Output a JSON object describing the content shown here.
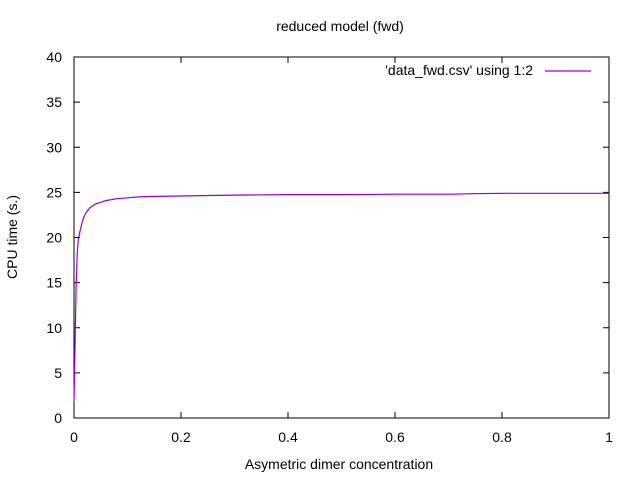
{
  "chart_data": {
    "type": "line",
    "title": "reduced model (fwd)",
    "xlabel": "Asymetric dimer concentration",
    "ylabel": "CPU time (s.)",
    "xlim": [
      0,
      1
    ],
    "ylim": [
      0,
      40
    ],
    "xticks": [
      0,
      0.2,
      0.4,
      0.6,
      0.8,
      1
    ],
    "xtick_labels": [
      "0",
      "0.2",
      "0.4",
      "0.6",
      "0.8",
      "1"
    ],
    "yticks": [
      0,
      5,
      10,
      15,
      20,
      25,
      30,
      35,
      40
    ],
    "ytick_labels": [
      "0",
      "5",
      "10",
      "15",
      "20",
      "25",
      "30",
      "35",
      "40"
    ],
    "grid": false,
    "legend_position": "top-right",
    "series": [
      {
        "name": "'data_fwd.csv' using 1:2",
        "color": "#9400d3",
        "x": [
          0.0,
          0.002,
          0.004,
          0.006,
          0.008,
          0.01,
          0.012,
          0.015,
          0.018,
          0.022,
          0.026,
          0.03,
          0.035,
          0.04,
          0.05,
          0.06,
          0.07,
          0.08,
          0.1,
          0.12,
          0.15,
          0.2,
          0.25,
          0.3,
          0.4,
          0.5,
          0.6,
          0.7,
          0.75,
          0.8,
          0.9,
          1.0
        ],
        "y": [
          1.8,
          8.5,
          14.5,
          18.2,
          19.8,
          20.3,
          20.9,
          21.6,
          22.2,
          22.7,
          23.0,
          23.3,
          23.5,
          23.7,
          23.9,
          24.1,
          24.2,
          24.3,
          24.4,
          24.5,
          24.55,
          24.6,
          24.65,
          24.7,
          24.75,
          24.75,
          24.8,
          24.8,
          24.85,
          24.9,
          24.9,
          24.9
        ]
      }
    ]
  }
}
